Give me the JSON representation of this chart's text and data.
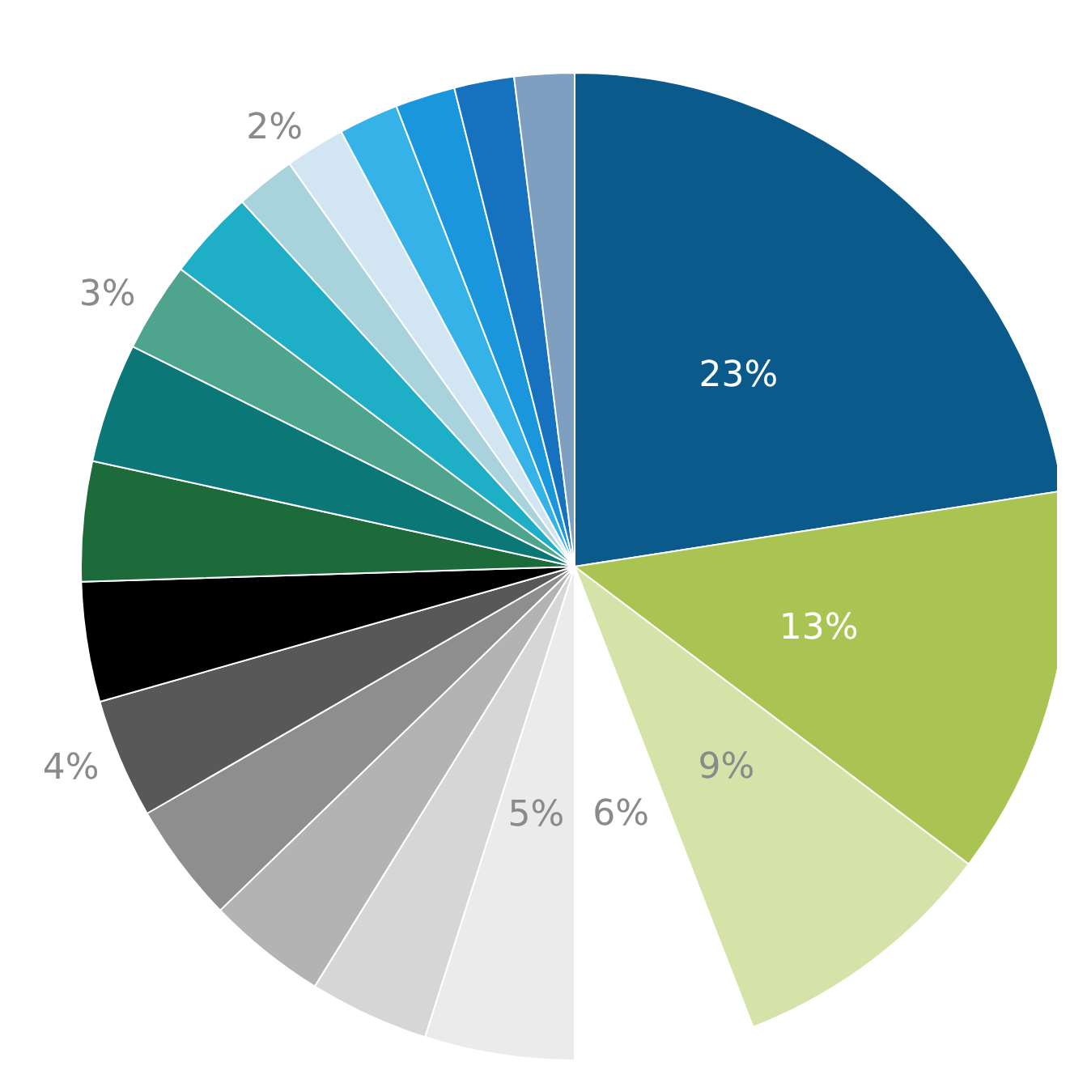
{
  "chart_data": {
    "type": "pie",
    "categories": [
      null,
      null,
      null,
      null,
      null,
      null,
      null,
      null,
      null,
      null,
      null,
      null,
      null,
      null,
      null,
      null,
      null,
      null,
      null,
      null
    ],
    "values": [
      23,
      13,
      9,
      6,
      5,
      4,
      4,
      4,
      4,
      4,
      4,
      4,
      3,
      3,
      2,
      2,
      2,
      2,
      2,
      2
    ],
    "colors": [
      "#0a5a8c",
      "#a9c452",
      "#d5e3a8",
      "#ffffff",
      "#ebebeb",
      "#d6d6d6",
      "#b3b3b3",
      "#8e8e8e",
      "#585858",
      "#000000",
      "#1d6a3b",
      "#0b7877",
      "#4fa48e",
      "#1eaec6",
      "#a8d3dc",
      "#d2e5f2",
      "#35b2e8",
      "#1a96dc",
      "#1672bf",
      "#7f9fc0"
    ],
    "value_labels": [
      "23%",
      "13%",
      "9%",
      "6%",
      "5%",
      null,
      null,
      null,
      "4%",
      null,
      null,
      null,
      "3%",
      null,
      null,
      "2%",
      null,
      null,
      null,
      null
    ]
  }
}
